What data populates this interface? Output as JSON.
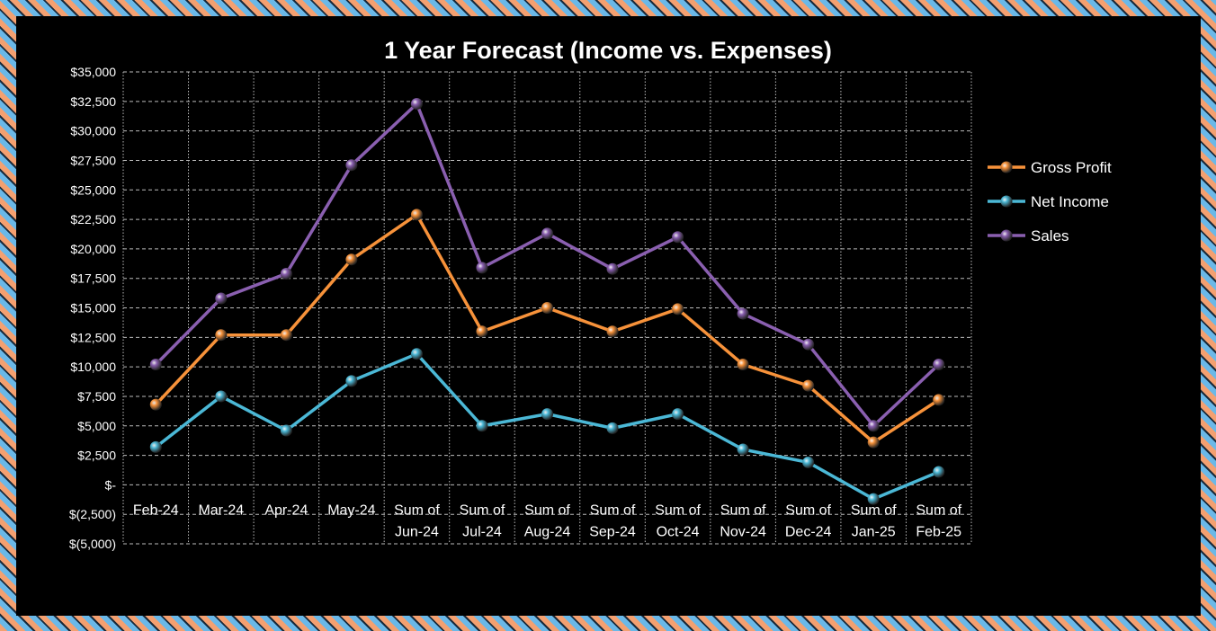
{
  "chart_data": {
    "type": "line",
    "title": "1 Year Forecast (Income vs. Expenses)",
    "xlabel": "",
    "ylabel": "",
    "ylim": [
      -5000,
      35000
    ],
    "ystep": 2500,
    "ytick_labels": [
      "$(5,000)",
      "$(2,500)",
      "$-",
      "$2,500",
      "$5,000",
      "$7,500",
      "$10,000",
      "$12,500",
      "$15,000",
      "$17,500",
      "$20,000",
      "$22,500",
      "$25,000",
      "$27,500",
      "$30,000",
      "$32,500",
      "$35,000"
    ],
    "grid": true,
    "legend_position": "right",
    "categories": [
      [
        "Feb-24"
      ],
      [
        "Mar-24"
      ],
      [
        "Apr-24"
      ],
      [
        "May-24"
      ],
      [
        "Sum of",
        "Jun-24"
      ],
      [
        "Sum of",
        "Jul-24"
      ],
      [
        "Sum of",
        "Aug-24"
      ],
      [
        "Sum of",
        "Sep-24"
      ],
      [
        "Sum of",
        "Oct-24"
      ],
      [
        "Sum of",
        "Nov-24"
      ],
      [
        "Sum of",
        "Dec-24"
      ],
      [
        "Sum of",
        "Jan-25"
      ],
      [
        "Sum of",
        "Feb-25"
      ]
    ],
    "series": [
      {
        "name": "Gross Profit",
        "color": "#f7923a",
        "values": [
          6800,
          12700,
          12700,
          19100,
          22900,
          13000,
          15000,
          13000,
          14900,
          10200,
          8400,
          3600,
          7200
        ]
      },
      {
        "name": "Net Income",
        "color": "#4bb8d6",
        "values": [
          3200,
          7500,
          4600,
          8800,
          11100,
          5000,
          6000,
          4800,
          6000,
          3000,
          1900,
          -1200,
          1100
        ]
      },
      {
        "name": "Sales",
        "color": "#8a5fb0",
        "values": [
          10200,
          15800,
          17900,
          27100,
          32300,
          18400,
          21300,
          18300,
          21000,
          14500,
          11900,
          5000,
          10200
        ]
      }
    ]
  }
}
